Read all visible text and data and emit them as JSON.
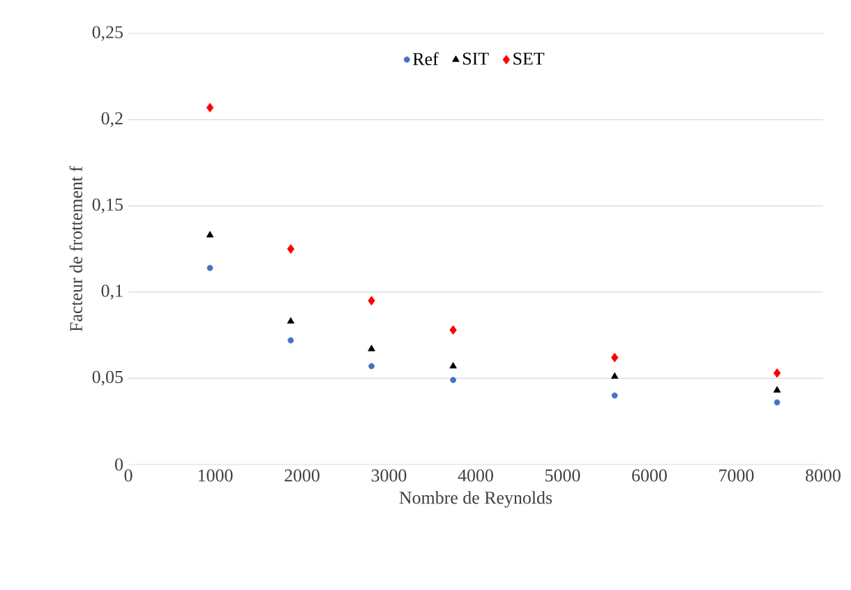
{
  "chart_data": {
    "type": "scatter",
    "xlabel": "Nombre de Reynolds",
    "ylabel": "Facteur de frottement f",
    "x": [
      940,
      1870,
      2800,
      3740,
      5600,
      7470
    ],
    "series": [
      {
        "name": "Ref",
        "color": "#4472c4",
        "marker": "circle",
        "values": [
          0.114,
          0.072,
          0.057,
          0.049,
          0.04,
          0.036
        ]
      },
      {
        "name": "SIT",
        "color": "#000000",
        "marker": "triangle",
        "values": [
          0.133,
          0.083,
          0.067,
          0.057,
          0.051,
          0.043
        ]
      },
      {
        "name": "SET",
        "color": "#ff0000",
        "marker": "diamond",
        "values": [
          0.207,
          0.125,
          0.095,
          0.078,
          0.062,
          0.053
        ]
      }
    ],
    "xlim": [
      0,
      8000
    ],
    "xticks": [
      0,
      1000,
      2000,
      3000,
      4000,
      5000,
      6000,
      7000,
      8000
    ],
    "ylim": [
      0,
      0.25
    ],
    "yticks": [
      0,
      {
        "value": 0.05,
        "label": "0,05"
      },
      {
        "value": 0.1,
        "label": "0,1"
      },
      {
        "value": 0.15,
        "label": "0,15"
      },
      {
        "value": 0.2,
        "label": "0,2"
      },
      {
        "value": 0.25,
        "label": "0,25"
      }
    ],
    "grid": "y",
    "legend": "top"
  }
}
